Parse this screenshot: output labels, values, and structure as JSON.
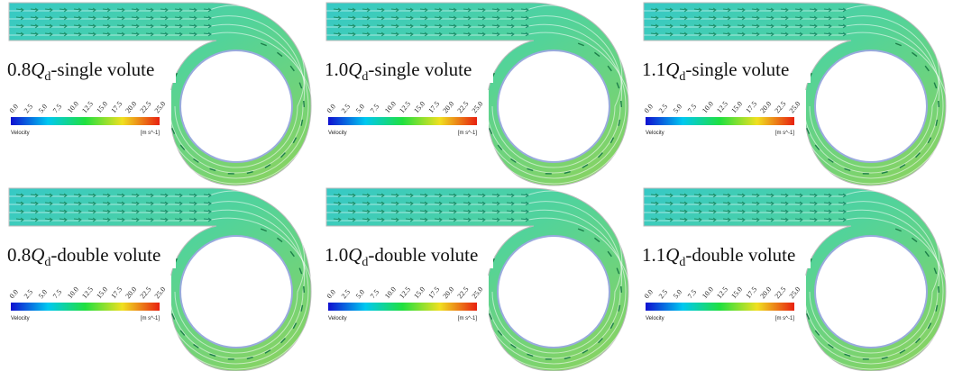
{
  "panels": [
    {
      "prefix": "0.8",
      "symbol": "Q",
      "subscript": "d",
      "suffix": "-single volute"
    },
    {
      "prefix": "1.0",
      "symbol": "Q",
      "subscript": "d",
      "suffix": "-single volute"
    },
    {
      "prefix": "1.1",
      "symbol": "Q",
      "subscript": "d",
      "suffix": "-single volute"
    },
    {
      "prefix": "0.8",
      "symbol": "Q",
      "subscript": "d",
      "suffix": "-double volute"
    },
    {
      "prefix": "1.0",
      "symbol": "Q",
      "subscript": "d",
      "suffix": "-double volute"
    },
    {
      "prefix": "1.1",
      "symbol": "Q",
      "subscript": "d",
      "suffix": "-double volute"
    }
  ],
  "colorbar": {
    "ticks": [
      "0.0",
      "2.5",
      "5.0",
      "7.5",
      "10.0",
      "12.5",
      "15.0",
      "17.5",
      "20.0",
      "22.5",
      "25.0"
    ],
    "title": "Velocity",
    "unit": "[m s^-1]"
  }
}
